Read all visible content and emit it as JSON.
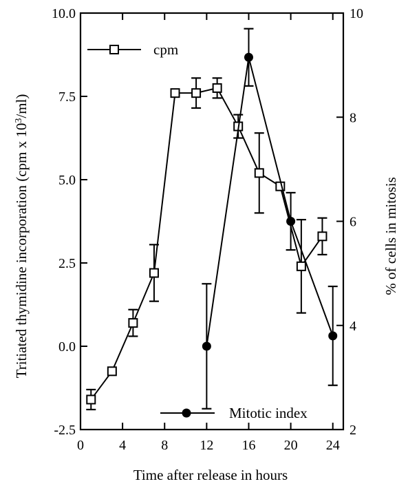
{
  "chart_data": {
    "type": "line",
    "x": {
      "label": "Time after release in hours",
      "range": [
        0,
        25
      ],
      "ticks": [
        0,
        4,
        8,
        12,
        16,
        20,
        24
      ],
      "tick_labels": [
        "0",
        "4",
        "8",
        "12",
        "16",
        "20",
        "24"
      ]
    },
    "y_left": {
      "label": "Tritiated thymidine incorporation (cpm x 10",
      "label_sup": "3",
      "label_tail": "/ml)",
      "range": [
        -2.5,
        10.0
      ],
      "ticks": [
        -2.5,
        0.0,
        2.5,
        5.0,
        7.5,
        10.0
      ],
      "tick_labels": [
        "-2.5",
        "0.0",
        "2.5",
        "5.0",
        "7.5",
        "10.0"
      ]
    },
    "y_right": {
      "label": "% of cells in mitosis",
      "range": [
        2,
        10
      ],
      "ticks": [
        2,
        4,
        6,
        8,
        10
      ],
      "tick_labels": [
        "2",
        "4",
        "6",
        "8",
        "10"
      ]
    },
    "series": [
      {
        "name": "cpm",
        "axis": "left",
        "marker": "open-square",
        "points": [
          {
            "x": 1,
            "y": -1.6,
            "err": 0.3
          },
          {
            "x": 3,
            "y": -0.75,
            "err": 0
          },
          {
            "x": 5,
            "y": 0.7,
            "err": 0.4
          },
          {
            "x": 7,
            "y": 2.2,
            "err": 0.85
          },
          {
            "x": 9,
            "y": 7.6,
            "err": 0
          },
          {
            "x": 11,
            "y": 7.6,
            "err": 0.45
          },
          {
            "x": 13,
            "y": 7.75,
            "err": 0.3
          },
          {
            "x": 15,
            "y": 6.6,
            "err": 0.35
          },
          {
            "x": 17,
            "y": 5.2,
            "err": 1.2
          },
          {
            "x": 19,
            "y": 4.8,
            "err": 0
          },
          {
            "x": 21,
            "y": 2.4,
            "err": 1.4
          },
          {
            "x": 23,
            "y": 3.3,
            "err": 0.55
          }
        ]
      },
      {
        "name": "Mitotic index",
        "axis": "right",
        "marker": "filled-circle",
        "points": [
          {
            "x": 12,
            "y": 3.6,
            "err": 1.2
          },
          {
            "x": 16,
            "y": 9.15,
            "err": 0.55
          },
          {
            "x": 20,
            "y": 6.0,
            "err": 0.55
          },
          {
            "x": 24,
            "y": 3.8,
            "err": 0.95
          }
        ]
      }
    ],
    "legend": [
      {
        "series": "cpm",
        "placement": "top-left"
      },
      {
        "series": "Mitotic index",
        "placement": "bottom-right"
      }
    ],
    "grid": false
  }
}
